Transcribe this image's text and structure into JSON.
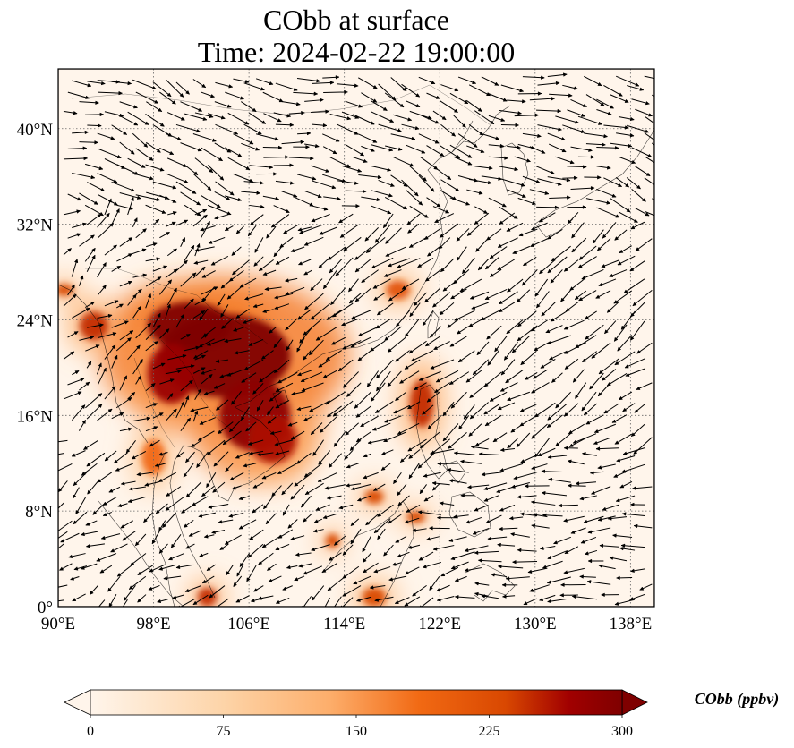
{
  "title": {
    "line1": "CObb at surface",
    "line2": "Time: 2024-02-22 19:00:00"
  },
  "map": {
    "extent": {
      "lon": [
        90,
        140
      ],
      "lat": [
        0,
        45
      ]
    },
    "lon_ticks": [
      90,
      98,
      106,
      114,
      122,
      130,
      138
    ],
    "lat_ticks": [
      0,
      8,
      16,
      24,
      32,
      40
    ],
    "lon_tick_labels": [
      "90°E",
      "98°E",
      "106°E",
      "114°E",
      "122°E",
      "130°E",
      "138°E"
    ],
    "lat_tick_labels": [
      "0°",
      "8°N",
      "16°N",
      "24°N",
      "32°N",
      "40°N"
    ],
    "background_color": "#fff5eb",
    "gridlines": true
  },
  "colorbar": {
    "label": "CObb (ppbv)",
    "range": [
      0,
      300
    ],
    "ticks": [
      0,
      75,
      150,
      225,
      300
    ],
    "tick_labels": [
      "0",
      "75",
      "150",
      "225",
      "300"
    ],
    "extend": "both",
    "colormap": "Oranges-to-darkred",
    "colors": [
      "#fff5eb",
      "#fdd4a8",
      "#fdae6b",
      "#f16913",
      "#d94801",
      "#a10000",
      "#7f0000"
    ]
  },
  "chart_data": {
    "type": "heatmap",
    "variable": "CObb",
    "level": "surface",
    "units": "ppbv",
    "vmin": 0,
    "vmax": 300,
    "plumes": [
      {
        "lon": 104,
        "lat": 21,
        "value": 300,
        "rlon": 5.5,
        "rlat": 3.5
      },
      {
        "lon": 101,
        "lat": 23.5,
        "value": 300,
        "rlon": 3.5,
        "rlat": 2
      },
      {
        "lon": 106.5,
        "lat": 16,
        "value": 280,
        "rlon": 3,
        "rlat": 3
      },
      {
        "lon": 99.5,
        "lat": 19.5,
        "value": 260,
        "rlon": 2,
        "rlat": 2.5
      },
      {
        "lon": 108,
        "lat": 14,
        "value": 240,
        "rlon": 2,
        "rlat": 2
      },
      {
        "lon": 93,
        "lat": 23.5,
        "value": 220,
        "rlon": 1.2,
        "rlat": 1.2
      },
      {
        "lon": 90.5,
        "lat": 26.5,
        "value": 200,
        "rlon": 0.8,
        "rlat": 0.5
      },
      {
        "lon": 120.5,
        "lat": 17,
        "value": 220,
        "rlon": 1,
        "rlat": 2
      },
      {
        "lon": 118.5,
        "lat": 26.5,
        "value": 180,
        "rlon": 1,
        "rlat": 0.8
      },
      {
        "lon": 116.5,
        "lat": 9.2,
        "value": 200,
        "rlon": 0.8,
        "rlat": 0.6
      },
      {
        "lon": 120,
        "lat": 7.5,
        "value": 200,
        "rlon": 0.8,
        "rlat": 0.5
      },
      {
        "lon": 113,
        "lat": 5.5,
        "value": 200,
        "rlon": 0.6,
        "rlat": 0.6
      },
      {
        "lon": 102.5,
        "lat": 0.8,
        "value": 220,
        "rlon": 0.8,
        "rlat": 0.8
      },
      {
        "lon": 116.5,
        "lat": 0.8,
        "value": 200,
        "rlon": 1,
        "rlat": 0.8
      },
      {
        "lon": 98,
        "lat": 12.5,
        "value": 150,
        "rlon": 1,
        "rlat": 1.5
      }
    ],
    "wind_vectors": "quiver arrows (black) overlaid on the field; northeasterly flow over the South China Sea and western Pacific, westerly flow in the north"
  }
}
